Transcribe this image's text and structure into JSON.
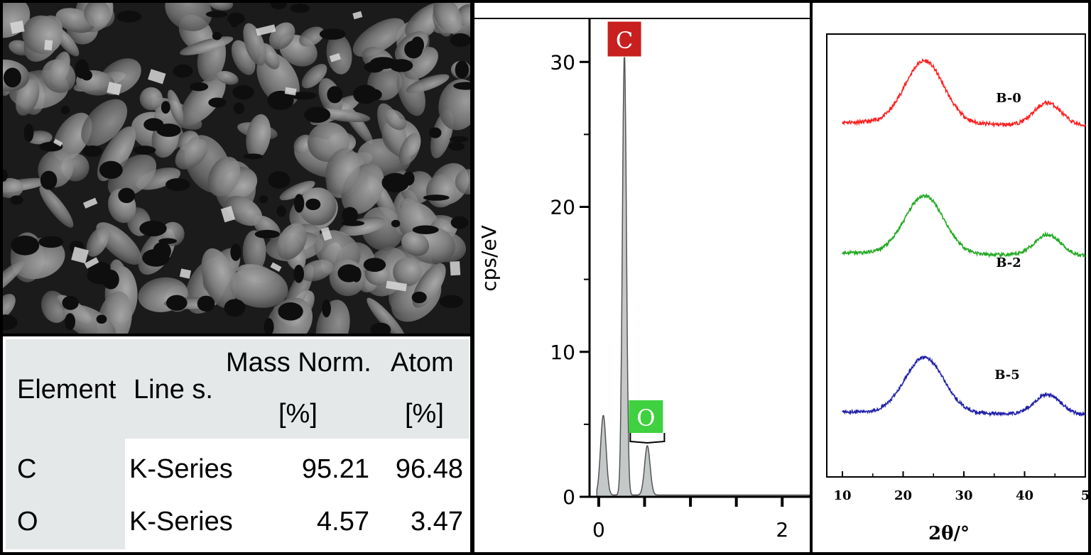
{
  "sem_image": {
    "description_icon": "sem-micrograph"
  },
  "edx_table": {
    "headers": {
      "element": "Element",
      "line": "Line s.",
      "mass_top": "Mass Norm.",
      "mass_bottom": "[%]",
      "atom_top": "Atom",
      "atom_bottom": "[%]"
    },
    "rows": [
      {
        "element": "C",
        "line": "K-Series",
        "mass": "95.21",
        "atom": "96.48"
      },
      {
        "element": "O",
        "line": "K-Series",
        "mass": "4.57",
        "atom": "3.47"
      }
    ]
  },
  "chart_data": [
    {
      "type": "line",
      "ylabel": "cps/eV",
      "xlabel": "",
      "xlim": [
        -0.1,
        2.3
      ],
      "ylim": [
        0,
        33
      ],
      "yticks": [
        0,
        10,
        20,
        30
      ],
      "xticks": [
        0,
        2
      ],
      "peaks": [
        {
          "x": 0.05,
          "y": 5.5
        },
        {
          "x": 0.28,
          "y": 30.5
        },
        {
          "x": 0.53,
          "y": 3.4
        }
      ],
      "annotations": [
        {
          "label": "C",
          "color": "#c8201f"
        },
        {
          "label": "O",
          "color": "#3fd13f"
        }
      ]
    },
    {
      "type": "line",
      "xlabel": "2θ/°",
      "xlim": [
        10,
        50
      ],
      "xticks": [
        "10",
        "20",
        "30",
        "40",
        "5"
      ],
      "series": [
        {
          "name": "B-0",
          "color": "#ff2020"
        },
        {
          "name": "B-2",
          "color": "#22aa22"
        },
        {
          "name": "B-5",
          "color": "#2020aa"
        }
      ]
    }
  ]
}
